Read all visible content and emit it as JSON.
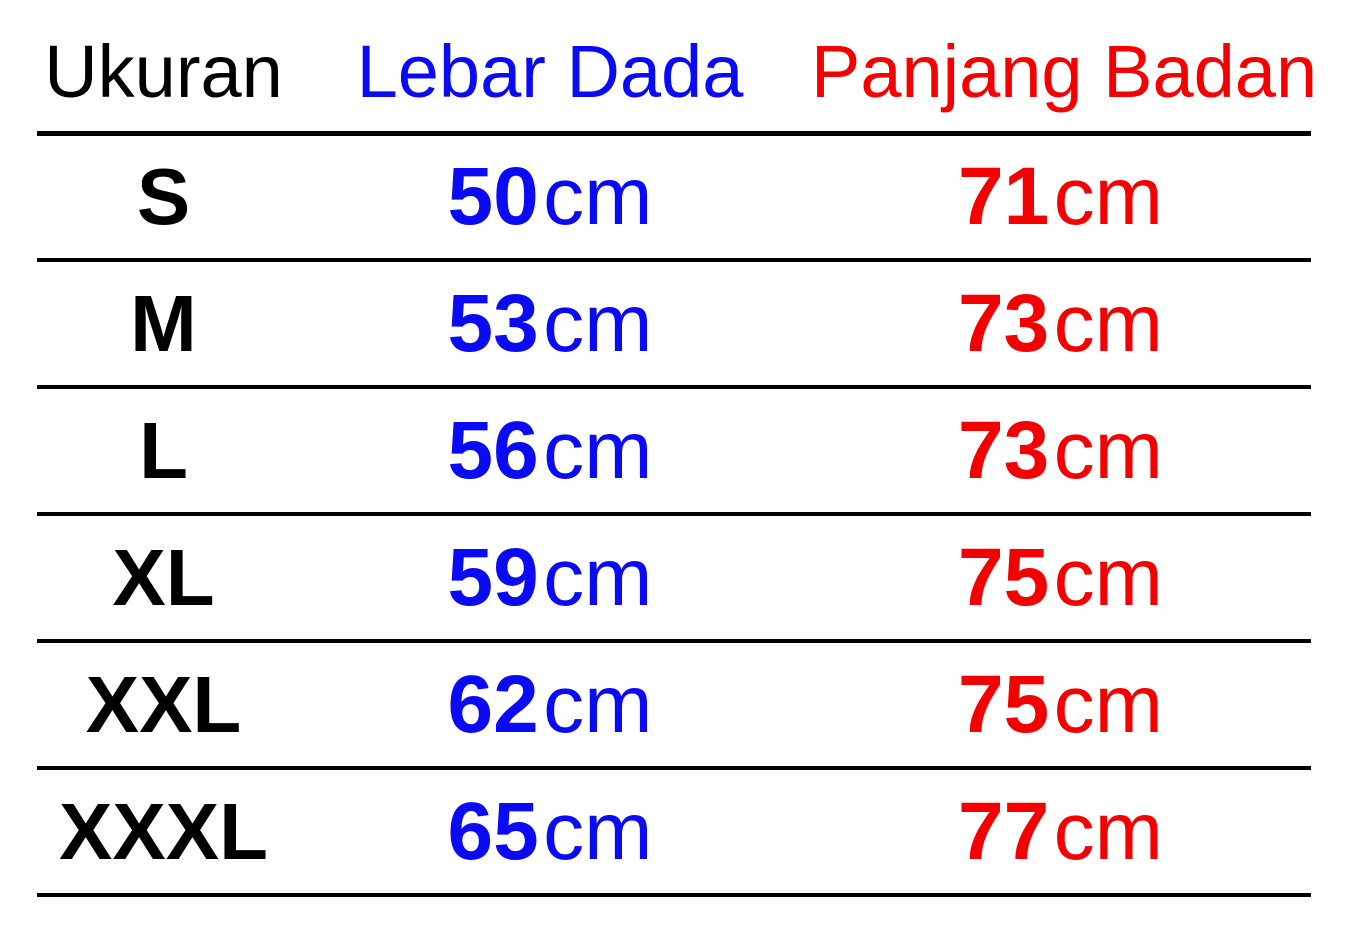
{
  "page": {
    "background": "#ffffff"
  },
  "colors": {
    "size_black": "#000000",
    "chest_blue": "#0a0af5",
    "length_red": "#f40000",
    "rule_black": "#000000"
  },
  "table": {
    "headers": {
      "size": "Ukuran",
      "chest": "Lebar Dada",
      "length": "Panjang Badan"
    },
    "unit": "cm",
    "rows": [
      {
        "size": "S",
        "chest": "50",
        "length": "71"
      },
      {
        "size": "M",
        "chest": "53",
        "length": "73"
      },
      {
        "size": "L",
        "chest": "56",
        "length": "73"
      },
      {
        "size": "XL",
        "chest": "59",
        "length": "75"
      },
      {
        "size": "XXL",
        "chest": "62",
        "length": "75"
      },
      {
        "size": "XXXL",
        "chest": "65",
        "length": "77"
      }
    ]
  },
  "chart_data": {
    "type": "table",
    "columns": [
      "Ukuran",
      "Lebar Dada",
      "Panjang Badan"
    ],
    "column_colors": [
      "#000000",
      "#0a0af5",
      "#f40000"
    ],
    "unit": "cm",
    "rows": [
      [
        "S",
        "50 cm",
        "71 cm"
      ],
      [
        "M",
        "53 cm",
        "73 cm"
      ],
      [
        "L",
        "56 cm",
        "73 cm"
      ],
      [
        "XL",
        "59 cm",
        "75 cm"
      ],
      [
        "XXL",
        "62 cm",
        "75 cm"
      ],
      [
        "XXXL",
        "65 cm",
        "77 cm"
      ]
    ],
    "series": [
      {
        "name": "Lebar Dada (cm)",
        "values": [
          50,
          53,
          56,
          59,
          62,
          65
        ]
      },
      {
        "name": "Panjang Badan (cm)",
        "values": [
          71,
          73,
          73,
          75,
          75,
          77
        ]
      }
    ],
    "categories": [
      "S",
      "M",
      "L",
      "XL",
      "XXL",
      "XXXL"
    ]
  }
}
